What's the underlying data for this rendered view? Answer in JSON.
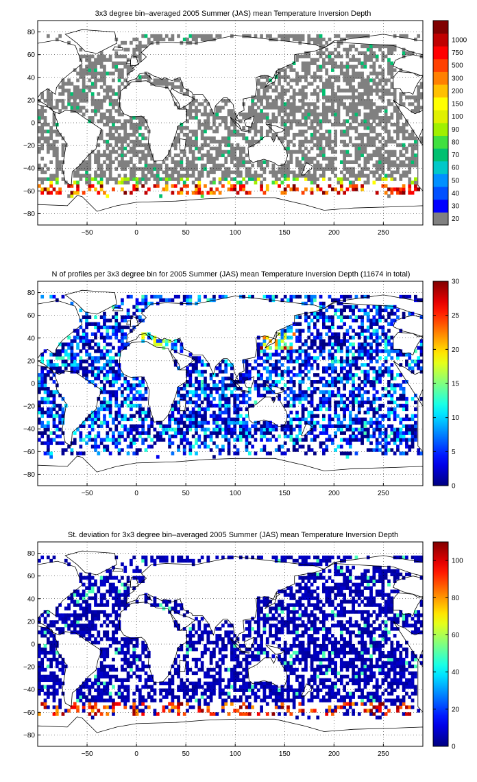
{
  "figure": {
    "panels": [
      {
        "id": "depth",
        "title": "3x3 degree bin–averaged 2005 Summer (JAS) mean Temperature Inversion Depth"
      },
      {
        "id": "count",
        "title": "N of profiles per 3x3 degree bin for 2005 Summer (JAS) mean Temperature Inversion Depth  (11674 in total)"
      },
      {
        "id": "std",
        "title": "St. deviation for 3x3 degree bin–averaged 2005 Summer (JAS) mean Temperature Inversion Depth"
      }
    ]
  },
  "chart_data": [
    {
      "type": "heatmap",
      "title": "3x3 degree bin–averaged 2005 Summer (JAS) mean Temperature Inversion Depth",
      "x_ticks": [
        -50,
        0,
        50,
        100,
        150,
        200,
        250
      ],
      "x_tick_labels": [
        "−50",
        "0",
        "50",
        "100",
        "150",
        "200",
        "250"
      ],
      "y_ticks": [
        80,
        60,
        40,
        20,
        0,
        -20,
        -40,
        -60,
        -80
      ],
      "y_tick_labels": [
        "80",
        "60",
        "40",
        "20",
        "0",
        "−20",
        "−40",
        "−60",
        "−80"
      ],
      "xlim": [
        -100,
        290
      ],
      "ylim": [
        -90,
        90
      ],
      "grid": true,
      "colorbar": {
        "type": "discrete",
        "labels": [
          "20",
          "30",
          "40",
          "50",
          "60",
          "70",
          "80",
          "90",
          "100",
          "150",
          "200",
          "300",
          "500",
          "750",
          "1000"
        ],
        "colors": [
          "#808080",
          "#0000ff",
          "#0050ff",
          "#0090ff",
          "#00c8c8",
          "#00c070",
          "#40e040",
          "#a0f000",
          "#e0f000",
          "#ffff00",
          "#ffc000",
          "#ff8000",
          "#ff4000",
          "#ff0000",
          "#c00000",
          "#800000"
        ]
      },
      "pattern": "grey (about 20 m) over most sampled ocean bins, 30–100 m bands near 50–55°S, 200–1000 m values in the Southern Ocean near 55–62°S"
    },
    {
      "type": "heatmap",
      "title": "N of profiles per 3x3 degree bin for 2005 Summer (JAS) mean Temperature Inversion Depth  (11674 in total)",
      "x_ticks": [
        -50,
        0,
        50,
        100,
        150,
        200,
        250
      ],
      "x_tick_labels": [
        "−50",
        "0",
        "50",
        "100",
        "150",
        "200",
        "250"
      ],
      "y_ticks": [
        80,
        60,
        40,
        20,
        0,
        -20,
        -40,
        -60,
        -80
      ],
      "y_tick_labels": [
        "80",
        "60",
        "40",
        "20",
        "0",
        "−20",
        "−40",
        "−60",
        "−80"
      ],
      "xlim": [
        -100,
        290
      ],
      "ylim": [
        -90,
        90
      ],
      "grid": true,
      "colorbar": {
        "type": "continuous",
        "min": 0,
        "max": 30,
        "ticks": [
          0,
          5,
          10,
          15,
          20,
          25,
          30
        ],
        "colormap": "jet"
      },
      "total_profiles": 11674,
      "pattern": "mostly 1–5 profiles per bin, higher counts (up to about 30) near Japan (~40°N, 140°E) and the Mediterranean"
    },
    {
      "type": "heatmap",
      "title": "St. deviation for 3x3 degree bin–averaged 2005 Summer (JAS) mean Temperature Inversion Depth",
      "x_ticks": [
        -50,
        0,
        50,
        100,
        150,
        200,
        250
      ],
      "x_tick_labels": [
        "−50",
        "0",
        "50",
        "100",
        "150",
        "200",
        "250"
      ],
      "y_ticks": [
        80,
        60,
        40,
        20,
        0,
        -20,
        -40,
        -60,
        -80
      ],
      "y_tick_labels": [
        "80",
        "60",
        "40",
        "20",
        "0",
        "−20",
        "−40",
        "−60",
        "−80"
      ],
      "xlim": [
        -100,
        290
      ],
      "ylim": [
        -90,
        90
      ],
      "grid": true,
      "colorbar": {
        "type": "continuous",
        "min": 0,
        "max": 110,
        "ticks": [
          0,
          20,
          40,
          60,
          80,
          100
        ],
        "colormap": "jet"
      },
      "pattern": "near 0 over most sampled bins (dark blue), high values (80–110) along the Southern Ocean near 50–60°S"
    }
  ]
}
